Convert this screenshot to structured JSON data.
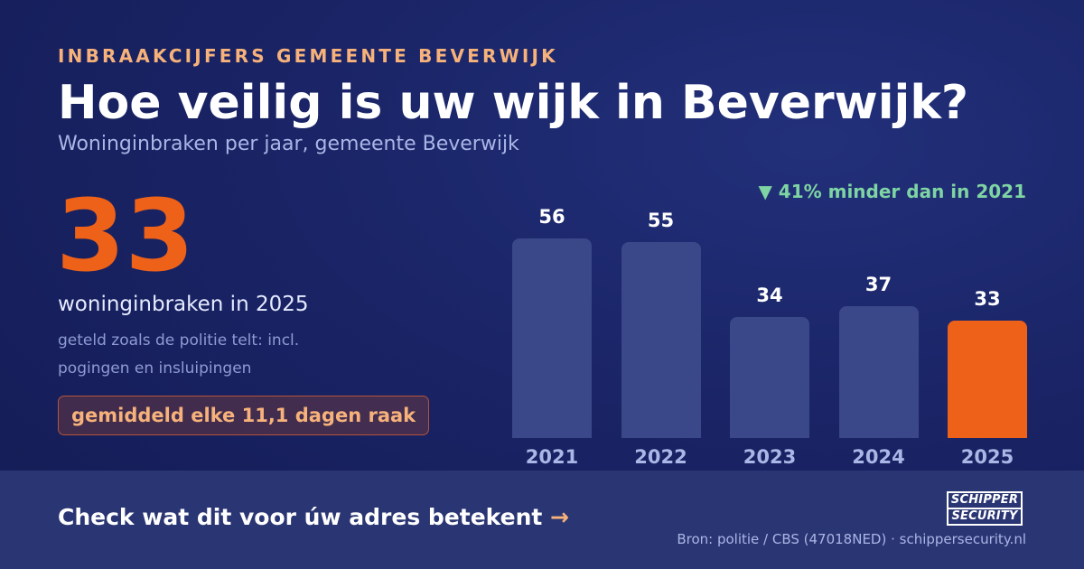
{
  "header": {
    "eyebrow": "INBRAAKCIJFERS GEMEENTE BEVERWIJK",
    "title": "Hoe veilig is uw wijk in Beverwijk?",
    "subtitle": "Woninginbraken per jaar, gemeente Beverwijk"
  },
  "highlight": {
    "number": "33",
    "caption": "woninginbraken in 2025",
    "note": "geteld zoals de politie telt: incl. pogingen en insluipingen",
    "badge": "gemiddeld elke 11,1 dagen raak"
  },
  "trend": {
    "text": "▼ 41% minder dan in 2021",
    "color": "#7ed4a3"
  },
  "chart_data": {
    "type": "bar",
    "title": "",
    "xlabel": "",
    "ylabel": "",
    "categories": [
      "2021",
      "2022",
      "2023",
      "2024",
      "2025"
    ],
    "values": [
      56,
      55,
      34,
      37,
      33
    ],
    "ylim": [
      0,
      56
    ],
    "grid": false,
    "legend": "none",
    "bar_color": "#3a4789",
    "highlight_color": "#ee6118",
    "highlight_index": 4
  },
  "footer": {
    "cta": "Check wat dit voor úw adres betekent",
    "cta_arrow": "→",
    "logo_line1": "SCHIPPER",
    "logo_line2": "SECURITY",
    "source": "Bron: politie / CBS (47018NED) · schippersecurity.nl"
  },
  "colors": {
    "accent": "#ee6118",
    "eyebrow": "#f6b27a",
    "background": "#1a2466"
  }
}
